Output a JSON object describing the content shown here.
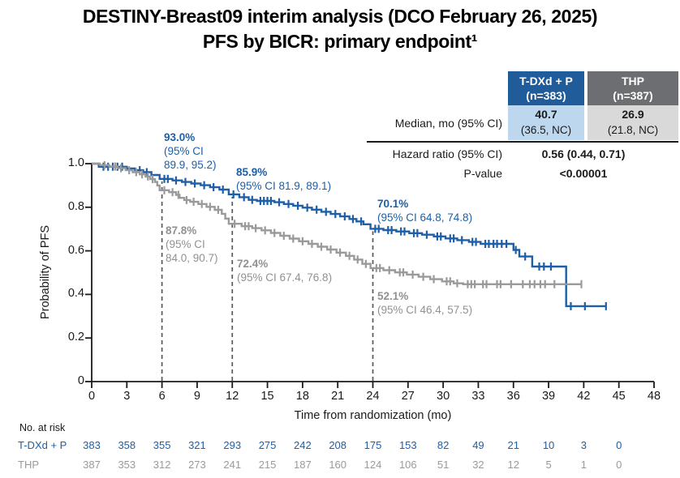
{
  "title": {
    "line1": "DESTINY-Breast09 interim analysis (DCO February 26, 2025)",
    "line2": "PFS by BICR: primary endpoint¹"
  },
  "colors": {
    "tdxd_blue": "#1d5fa8",
    "thp_gray": "#9a9a9a",
    "annotation_gray": "#8f9193",
    "header_blue_bg": "#1f5c99",
    "header_gray_bg": "#6d6e71",
    "cell_blue_bg": "#bdd7ee",
    "cell_gray_bg": "#d9d9d9",
    "axis": "#1a1a1a",
    "dashed_line": "#58595b"
  },
  "stats_table": {
    "columns": [
      {
        "header_line1": "T-DXd + P",
        "header_line2": "(n=383)"
      },
      {
        "header_line1": "THP",
        "header_line2": "(n=387)"
      }
    ],
    "median_row": {
      "label": "Median, mo (95% CI)",
      "values": [
        {
          "main": "40.7",
          "ci": "(36.5, NC)"
        },
        {
          "main": "26.9",
          "ci": "(21.8, NC)"
        }
      ]
    },
    "hazard_row": {
      "label": "Hazard ratio (95% CI)",
      "value": "0.56 (0.44, 0.71)"
    },
    "pvalue_row": {
      "label": "P-value",
      "value": "<0.00001"
    }
  },
  "risk_table": {
    "title": "No. at risk",
    "months": [
      0,
      3,
      6,
      9,
      12,
      15,
      18,
      21,
      24,
      27,
      30,
      33,
      36,
      39,
      42,
      45
    ],
    "rows": [
      {
        "label": "T-DXd + P",
        "color": "#1d5fa8",
        "counts": [
          383,
          358,
          355,
          321,
          293,
          275,
          242,
          208,
          175,
          153,
          82,
          49,
          21,
          10,
          3,
          0
        ]
      },
      {
        "label": "THP",
        "color": "#9a9a9a",
        "counts": [
          387,
          353,
          312,
          273,
          241,
          215,
          187,
          160,
          124,
          106,
          51,
          32,
          12,
          5,
          1,
          0
        ]
      }
    ]
  },
  "chart_data": {
    "type": "line",
    "subtype": "kaplan-meier-step",
    "title": "",
    "xlabel": "Time from randomization (mo)",
    "ylabel": "Probability of PFS",
    "xlim": [
      0,
      48
    ],
    "ylim": [
      0,
      1.0
    ],
    "grid": false,
    "legend_position": "none",
    "x_ticks": [
      0,
      3,
      6,
      9,
      12,
      15,
      18,
      21,
      24,
      27,
      30,
      33,
      36,
      39,
      42,
      45,
      48
    ],
    "y_ticks": [
      {
        "v": 1.0,
        "label": "1.0"
      },
      {
        "v": 0.8,
        "label": "0.8"
      },
      {
        "v": 0.6,
        "label": "0.6"
      },
      {
        "v": 0.4,
        "label": "0.4"
      },
      {
        "v": 0.2,
        "label": "0.2"
      },
      {
        "v": 0.0,
        "label": "0"
      }
    ],
    "dashed_reference_lines": [
      {
        "t": 6,
        "p_top": 0.93
      },
      {
        "t": 12,
        "p_top": 0.859
      },
      {
        "t": 24,
        "p_top": 0.701
      }
    ],
    "landmarks": [
      {
        "series": "T-DXd + P",
        "t": 6,
        "lines": [
          "93.0%",
          "(95% CI",
          "89.9, 95.2)"
        ]
      },
      {
        "series": "T-DXd + P",
        "t": 12,
        "lines": [
          "85.9%",
          "(95% CI 81.9, 89.1)"
        ]
      },
      {
        "series": "T-DXd + P",
        "t": 24,
        "lines": [
          "70.1%",
          "(95% CI 64.8, 74.8)"
        ]
      },
      {
        "series": "THP",
        "t": 6,
        "lines": [
          "87.8%",
          "(95% CI",
          "84.0, 90.7)"
        ]
      },
      {
        "series": "THP",
        "t": 12,
        "lines": [
          "72.4%",
          "(95% CI 67.4, 76.8)"
        ]
      },
      {
        "series": "THP",
        "t": 24,
        "lines": [
          "52.1%",
          "(95% CI 46.4, 57.5)"
        ]
      }
    ],
    "series": [
      {
        "name": "T-DXd + P",
        "color": "#1d5fa8",
        "steps": [
          [
            0,
            1.0
          ],
          [
            0.6,
            0.986
          ],
          [
            3.0,
            0.978
          ],
          [
            3.7,
            0.97
          ],
          [
            4.4,
            0.961
          ],
          [
            5.1,
            0.948
          ],
          [
            5.8,
            0.93
          ],
          [
            6.9,
            0.923
          ],
          [
            7.7,
            0.916
          ],
          [
            8.5,
            0.909
          ],
          [
            9.3,
            0.901
          ],
          [
            10.1,
            0.892
          ],
          [
            10.9,
            0.881
          ],
          [
            11.7,
            0.859
          ],
          [
            12.6,
            0.846
          ],
          [
            13.4,
            0.834
          ],
          [
            14.1,
            0.829
          ],
          [
            15.6,
            0.823
          ],
          [
            16.4,
            0.815
          ],
          [
            17.2,
            0.807
          ],
          [
            18.0,
            0.798
          ],
          [
            18.8,
            0.789
          ],
          [
            19.6,
            0.779
          ],
          [
            20.4,
            0.769
          ],
          [
            21.2,
            0.758
          ],
          [
            22.0,
            0.746
          ],
          [
            22.6,
            0.735
          ],
          [
            23.2,
            0.722
          ],
          [
            23.8,
            0.701
          ],
          [
            24.9,
            0.695
          ],
          [
            26.0,
            0.689
          ],
          [
            27.1,
            0.681
          ],
          [
            28.2,
            0.674
          ],
          [
            29.2,
            0.666
          ],
          [
            30.2,
            0.657
          ],
          [
            31.2,
            0.649
          ],
          [
            32.2,
            0.641
          ],
          [
            33.2,
            0.632
          ],
          [
            36.0,
            0.604
          ],
          [
            36.5,
            0.574
          ],
          [
            37.6,
            0.528
          ],
          [
            40.5,
            0.346
          ],
          [
            43.9,
            0.346
          ]
        ],
        "censor_ticks": [
          1.0,
          1.4,
          1.8,
          2.2,
          2.6,
          4.1,
          4.7,
          6.2,
          6.5,
          7.2,
          8.0,
          8.8,
          9.6,
          10.4,
          11.2,
          12.1,
          13.0,
          13.7,
          14.4,
          14.7,
          15.0,
          15.3,
          16.0,
          16.8,
          17.6,
          18.4,
          19.2,
          20.0,
          20.8,
          21.6,
          22.3,
          23.0,
          24.2,
          24.5,
          25.3,
          25.6,
          26.4,
          26.7,
          27.5,
          27.8,
          28.6,
          29.5,
          29.8,
          30.6,
          30.9,
          31.6,
          32.5,
          32.8,
          33.6,
          33.9,
          34.3,
          34.6,
          35.0,
          35.4,
          36.2,
          37.0,
          38.2,
          38.6,
          39.2,
          40.9,
          42.1,
          43.9
        ]
      },
      {
        "name": "THP",
        "color": "#9a9a9a",
        "steps": [
          [
            0,
            1.0
          ],
          [
            0.7,
            0.993
          ],
          [
            1.5,
            0.987
          ],
          [
            2.2,
            0.979
          ],
          [
            2.9,
            0.97
          ],
          [
            3.5,
            0.961
          ],
          [
            4.1,
            0.951
          ],
          [
            4.6,
            0.941
          ],
          [
            5.0,
            0.929
          ],
          [
            5.4,
            0.916
          ],
          [
            5.6,
            0.9
          ],
          [
            5.8,
            0.878
          ],
          [
            6.6,
            0.869
          ],
          [
            7.2,
            0.857
          ],
          [
            7.5,
            0.843
          ],
          [
            7.9,
            0.833
          ],
          [
            8.4,
            0.825
          ],
          [
            9.1,
            0.815
          ],
          [
            9.8,
            0.802
          ],
          [
            10.5,
            0.788
          ],
          [
            11.1,
            0.77
          ],
          [
            11.4,
            0.748
          ],
          [
            11.7,
            0.724
          ],
          [
            12.8,
            0.713
          ],
          [
            13.7,
            0.704
          ],
          [
            14.5,
            0.694
          ],
          [
            15.3,
            0.682
          ],
          [
            16.1,
            0.669
          ],
          [
            16.9,
            0.656
          ],
          [
            17.7,
            0.644
          ],
          [
            18.5,
            0.632
          ],
          [
            19.3,
            0.619
          ],
          [
            20.1,
            0.606
          ],
          [
            20.9,
            0.592
          ],
          [
            21.7,
            0.577
          ],
          [
            22.4,
            0.56
          ],
          [
            23.1,
            0.54
          ],
          [
            23.8,
            0.521
          ],
          [
            24.9,
            0.511
          ],
          [
            25.9,
            0.501
          ],
          [
            26.9,
            0.491
          ],
          [
            27.9,
            0.481
          ],
          [
            28.9,
            0.47
          ],
          [
            29.9,
            0.46
          ],
          [
            30.9,
            0.451
          ],
          [
            31.7,
            0.447
          ],
          [
            41.8,
            0.447
          ]
        ],
        "censor_ticks": [
          1.1,
          2.0,
          2.5,
          3.2,
          3.8,
          4.3,
          4.8,
          5.2,
          6.2,
          6.9,
          7.4,
          8.1,
          8.7,
          9.4,
          10.1,
          10.8,
          12.2,
          13.1,
          13.4,
          14.0,
          14.8,
          15.6,
          16.4,
          17.2,
          18.0,
          18.8,
          19.6,
          20.4,
          21.2,
          22.0,
          22.7,
          23.4,
          24.3,
          24.6,
          25.4,
          26.3,
          26.6,
          27.4,
          28.3,
          29.2,
          30.3,
          30.6,
          31.2,
          32.1,
          32.4,
          32.7,
          33.4,
          33.7,
          34.6,
          34.9,
          35.8,
          36.8,
          37.4,
          37.8,
          38.3,
          38.7,
          39.5,
          41.8
        ]
      }
    ]
  }
}
